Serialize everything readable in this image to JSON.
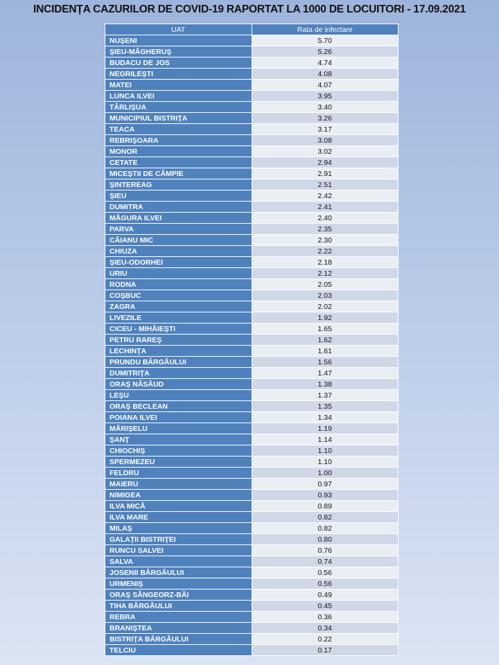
{
  "header": {
    "title": "INCIDENȚA CAZURILOR DE COVID-19 RAPORTAT LA 1000 DE LOCUITORI - 17.09.2021"
  },
  "table": {
    "columns": [
      "UAT",
      "Rata de infectare"
    ],
    "rows": [
      [
        "NUŞENI",
        "5.70"
      ],
      [
        "ŞIEU-MĂGHERUŞ",
        "5.26"
      ],
      [
        "BUDACU DE JOS",
        "4.74"
      ],
      [
        "NEGRILEŞTI",
        "4.08"
      ],
      [
        "MATEI",
        "4.07"
      ],
      [
        "LUNCA ILVEI",
        "3.95"
      ],
      [
        "TÂRLIŞUA",
        "3.40"
      ],
      [
        "MUNICIPIUL BISTRIŢA",
        "3.26"
      ],
      [
        "TEACA",
        "3.17"
      ],
      [
        "REBRIŞOARA",
        "3.08"
      ],
      [
        "MONOR",
        "3.02"
      ],
      [
        "CETATE",
        "2.94"
      ],
      [
        "MICEŞTII DE CÂMPIE",
        "2.91"
      ],
      [
        "ŞINTEREAG",
        "2.51"
      ],
      [
        "ŞIEU",
        "2.42"
      ],
      [
        "DUMITRA",
        "2.41"
      ],
      [
        "MĂGURA ILVEI",
        "2.40"
      ],
      [
        "PARVA",
        "2.35"
      ],
      [
        "CĂIANU MIC",
        "2.30"
      ],
      [
        "CHIUZA",
        "2.22"
      ],
      [
        "ŞIEU-ODORHEI",
        "2.18"
      ],
      [
        "URIU",
        "2.12"
      ],
      [
        "RODNA",
        "2.05"
      ],
      [
        "COŞBUC",
        "2.03"
      ],
      [
        "ZAGRA",
        "2.02"
      ],
      [
        "LIVEZILE",
        "1.92"
      ],
      [
        "CICEU - MIHĂIEŞTI",
        "1.65"
      ],
      [
        "PETRU RAREŞ",
        "1.62"
      ],
      [
        "LECHINŢA",
        "1.61"
      ],
      [
        "PRUNDU BÂRGĂULUI",
        "1.56"
      ],
      [
        "DUMITRIŢA",
        "1.47"
      ],
      [
        "ORAŞ NĂSĂUD",
        "1.38"
      ],
      [
        "LEŞU",
        "1.37"
      ],
      [
        "ORAŞ BECLEAN",
        "1.35"
      ],
      [
        "POIANA ILVEI",
        "1.34"
      ],
      [
        "MĂRIŞELU",
        "1.19"
      ],
      [
        "ŞANŢ",
        "1.14"
      ],
      [
        "CHIOCHIŞ",
        "1.10"
      ],
      [
        "SPERMEZEU",
        "1.10"
      ],
      [
        "FELDRU",
        "1.00"
      ],
      [
        "MAIERU",
        "0.97"
      ],
      [
        "NIMIGEA",
        "0.93"
      ],
      [
        "ILVA MICĂ",
        "0.89"
      ],
      [
        "ILVA MARE",
        "0.82"
      ],
      [
        "MILAŞ",
        "0.82"
      ],
      [
        "GALAŢII BISTRIŢEI",
        "0.80"
      ],
      [
        "RUNCU SALVEI",
        "0.76"
      ],
      [
        "SALVA",
        "0.74"
      ],
      [
        "JOSENII BÂRGĂULUI",
        "0.56"
      ],
      [
        "URMENIŞ",
        "0.56"
      ],
      [
        "ORAŞ SÂNGEORZ-BĂI",
        "0.49"
      ],
      [
        "TIHA BÂRGĂULUI",
        "0.45"
      ],
      [
        "REBRA",
        "0.36"
      ],
      [
        "BRANIŞTEA",
        "0.34"
      ],
      [
        "BISTRIŢA BÂRGĂULUI",
        "0.22"
      ],
      [
        "TELCIU",
        "0.17"
      ]
    ]
  }
}
